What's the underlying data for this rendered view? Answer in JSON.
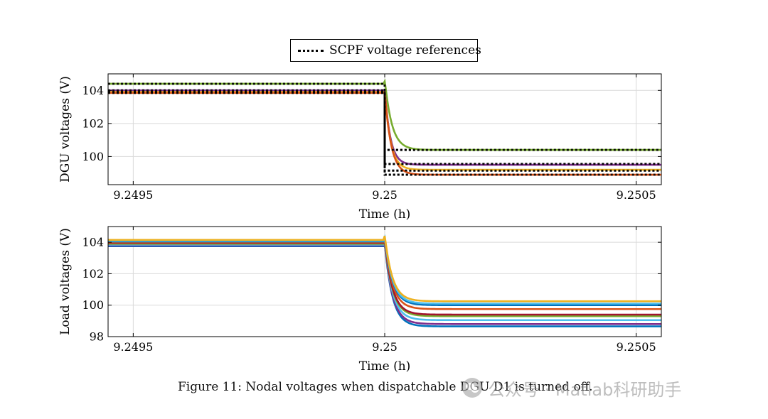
{
  "legend": {
    "label": "SCPF voltage references"
  },
  "caption": "Figure 11: Nodal voltages when dispatchable DGU D1 is turned off.",
  "watermark": "公众号 · Matlab科研助手",
  "chart_data": [
    {
      "type": "line",
      "title": "",
      "xlabel": "Time (h)",
      "ylabel": "DGU voltages (V)",
      "xlim": [
        9.24945,
        9.25055
      ],
      "ylim": [
        98.3,
        105
      ],
      "xticks": [
        9.2495,
        9.25,
        9.2505
      ],
      "xtick_labels": [
        "9.2495",
        "9.25",
        "9.2505"
      ],
      "yticks": [
        100,
        102,
        104
      ],
      "ytick_labels": [
        "100",
        "102",
        "104"
      ],
      "grid": true,
      "legend_position": "above",
      "event_time": 9.25,
      "series": [
        {
          "color": "#77ac30",
          "v0": 104.4,
          "v1": 100.4,
          "tau": 1.4e-05,
          "delay": 6e-07,
          "overshoot": 0.15
        },
        {
          "color": "#7e2f8e",
          "v0": 104.0,
          "v1": 99.5,
          "tau": 1.1e-05,
          "delay": 3e-07,
          "overshoot": 0
        },
        {
          "color": "#edb120",
          "v0": 103.9,
          "v1": 99.2,
          "tau": 1.15e-05,
          "delay": 3e-07,
          "overshoot": 0
        },
        {
          "color": "#d95319",
          "v0": 103.85,
          "v1": 98.9,
          "tau": 1.25e-05,
          "delay": 3e-07,
          "overshoot": 0
        }
      ],
      "references": [
        {
          "v0": 104.4,
          "v1": 100.4
        },
        {
          "v0": 104.0,
          "v1": 99.55
        },
        {
          "v0": 103.9,
          "v1": 99.15
        },
        {
          "v0": 103.85,
          "v1": 98.9
        }
      ]
    },
    {
      "type": "line",
      "title": "",
      "xlabel": "Time (h)",
      "ylabel": "Load voltages (V)",
      "xlim": [
        9.24945,
        9.25055
      ],
      "ylim": [
        98,
        105
      ],
      "xticks": [
        9.2495,
        9.25,
        9.2505
      ],
      "xtick_labels": [
        "9.2495",
        "9.25",
        "9.2505"
      ],
      "yticks": [
        98,
        100,
        102,
        104
      ],
      "ytick_labels": [
        "98",
        "100",
        "102",
        "104"
      ],
      "grid": true,
      "event_time": 9.25,
      "series": [
        {
          "color": "#0072bd",
          "v0": 103.75,
          "v1": 98.65,
          "tau": 1.5e-05,
          "delay": 4e-07,
          "overshoot": 0.1
        },
        {
          "color": "#7e2f8e",
          "v0": 103.8,
          "v1": 98.8,
          "tau": 1.5e-05,
          "delay": 4e-07,
          "overshoot": 0.1
        },
        {
          "color": "#4dbeee",
          "v0": 103.85,
          "v1": 99.05,
          "tau": 1.5e-05,
          "delay": 4e-07,
          "overshoot": 0.1
        },
        {
          "color": "#77ac30",
          "v0": 103.9,
          "v1": 99.3,
          "tau": 1.5e-05,
          "delay": 4e-07,
          "overshoot": 0.1
        },
        {
          "color": "#a2142f",
          "v0": 103.95,
          "v1": 99.4,
          "tau": 1.5e-05,
          "delay": 4e-07,
          "overshoot": 0.1
        },
        {
          "color": "#d95319",
          "v0": 104.0,
          "v1": 99.75,
          "tau": 1.5e-05,
          "delay": 4e-07,
          "overshoot": 0.15
        },
        {
          "color": "#0072bd",
          "v0": 104.05,
          "v1": 100.0,
          "tau": 1.5e-05,
          "delay": 4e-07,
          "overshoot": 0.2
        },
        {
          "color": "#4dbeee",
          "v0": 104.1,
          "v1": 100.1,
          "tau": 1.5e-05,
          "delay": 4e-07,
          "overshoot": 0.2
        },
        {
          "color": "#edb120",
          "v0": 104.15,
          "v1": 100.25,
          "tau": 1.5e-05,
          "delay": 4e-07,
          "overshoot": 0.25
        }
      ]
    }
  ]
}
